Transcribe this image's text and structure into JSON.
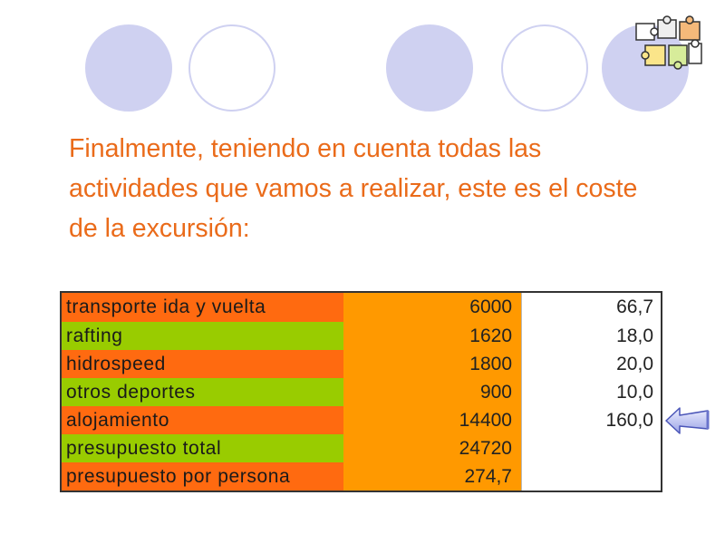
{
  "intro_text": "Finalmente, teniendo en cuenta todas las actividades que vamos a realizar, este es el coste de la excursión:",
  "colors": {
    "text_accent": "#ea6b1a",
    "circle": "#cfd1f1",
    "row_orange": "#ff6a10",
    "row_green": "#99cc00",
    "total_column": "#ff9900"
  },
  "icons": {
    "decoration": "puzzle-pieces-icon",
    "pointer": "arrow-left-icon"
  },
  "cost_table": {
    "rows": [
      {
        "label": "transporte ida y vuelta",
        "total": "6000",
        "per_person": "66,7",
        "color": "orange"
      },
      {
        "label": "rafting",
        "total": "1620",
        "per_person": "18,0",
        "color": "green"
      },
      {
        "label": "hidrospeed",
        "total": "1800",
        "per_person": "20,0",
        "color": "orange"
      },
      {
        "label": "otros deportes",
        "total": "900",
        "per_person": "10,0",
        "color": "green"
      },
      {
        "label": "alojamiento",
        "total": "14400",
        "per_person": "160,0",
        "color": "orange"
      },
      {
        "label": "presupuesto total",
        "total": "24720",
        "per_person": "",
        "color": "green"
      },
      {
        "label": "presupuesto por persona",
        "total": "274,7",
        "per_person": "",
        "color": "orange"
      }
    ]
  }
}
